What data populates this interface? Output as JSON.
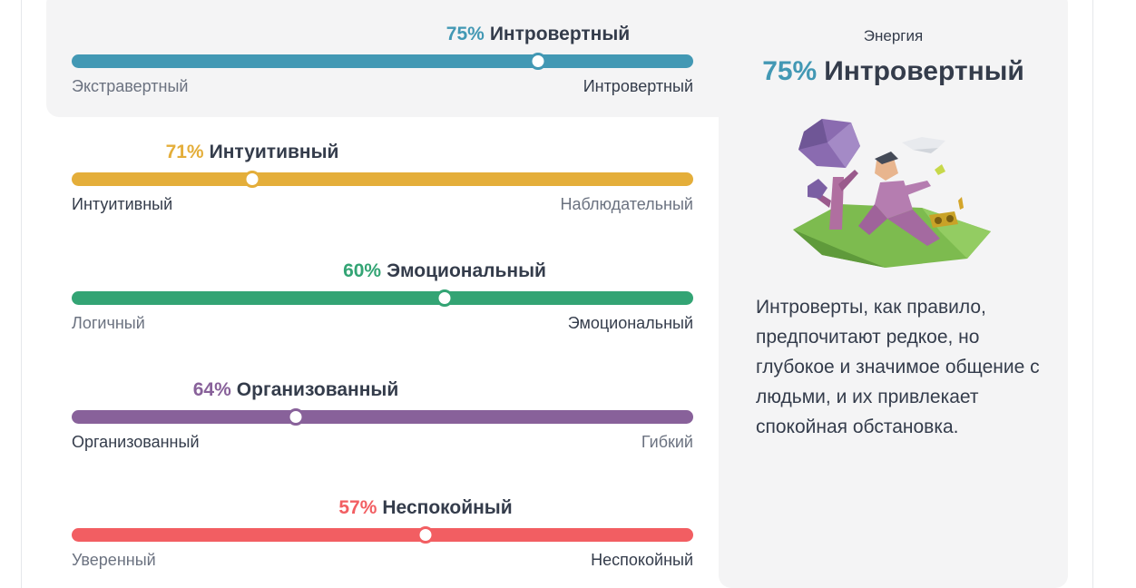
{
  "traits": [
    {
      "percent_label": "75%",
      "name": "Интровертный",
      "left_label": "Экстравертный",
      "right_label": "Интровертный",
      "value": 75,
      "active_side": "right",
      "color": "#4298b4"
    },
    {
      "percent_label": "71%",
      "name": "Интуитивный",
      "left_label": "Интуитивный",
      "right_label": "Наблюдательный",
      "value": 71,
      "active_side": "left",
      "color": "#e4ae3a"
    },
    {
      "percent_label": "60%",
      "name": "Эмоциональный",
      "left_label": "Логичный",
      "right_label": "Эмоциональный",
      "value": 60,
      "active_side": "right",
      "color": "#33a474"
    },
    {
      "percent_label": "64%",
      "name": "Организованный",
      "left_label": "Организованный",
      "right_label": "Гибкий",
      "value": 64,
      "active_side": "left",
      "color": "#88619a"
    },
    {
      "percent_label": "57%",
      "name": "Неспокойный",
      "left_label": "Уверенный",
      "right_label": "Неспокойный",
      "value": 57,
      "active_side": "right",
      "color": "#f25e62"
    }
  ],
  "side_panel": {
    "title": "Энергия",
    "heading_percent": "75%",
    "heading_name": "Интровертный",
    "description": "Интроверты, как правило, предпочитают редкое, но глубокое и значимое общение с людьми, и их привлекает спокойная обстановка.",
    "illustration": "introvert-person-under-tree"
  },
  "colors": {
    "text_dark": "#343c4b",
    "text_muted": "#6b7280",
    "panel_bg": "#f4f4f5"
  }
}
